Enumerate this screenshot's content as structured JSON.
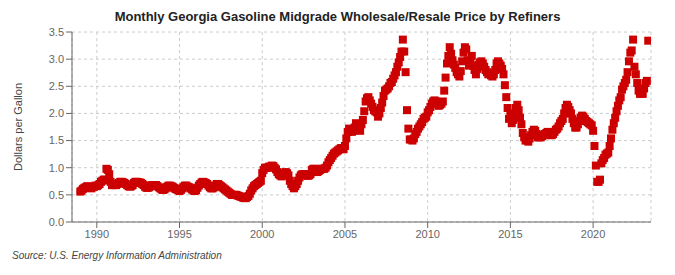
{
  "chart_data": {
    "type": "scatter",
    "title": "Monthly Georgia Gasoline Midgrade Wholesale/Resale Price by Refiners",
    "ylabel": "Dollars per Gallon",
    "annotations": [
      "Source: U.S. Energy Information Administration"
    ],
    "color": "#cc0000",
    "marker": "square",
    "grid": true,
    "xlim": [
      1988.5,
      2023.5
    ],
    "ylim": [
      0.0,
      3.5
    ],
    "xticks": [
      1990,
      1995,
      2000,
      2005,
      2010,
      2015,
      2020
    ],
    "yticks": [
      {
        "value": 0.0,
        "label": "0.0"
      },
      0.5,
      {
        "value": 1.0,
        "label": "1.0"
      },
      1.5,
      {
        "value": 2.0,
        "label": "2.0"
      },
      2.5,
      {
        "value": 3.0,
        "label": "3.0"
      },
      3.5
    ],
    "x": [
      1989.0,
      1989.083,
      1989.167,
      1989.25,
      1989.333,
      1989.417,
      1989.5,
      1989.583,
      1989.667,
      1989.75,
      1989.833,
      1989.917,
      1990.0,
      1990.083,
      1990.167,
      1990.25,
      1990.333,
      1990.417,
      1990.5,
      1990.583,
      1990.667,
      1990.75,
      1990.833,
      1990.917,
      1991.0,
      1991.083,
      1991.167,
      1991.25,
      1991.333,
      1991.417,
      1991.5,
      1991.583,
      1991.667,
      1991.75,
      1991.833,
      1991.917,
      1992.0,
      1992.083,
      1992.167,
      1992.25,
      1992.333,
      1992.417,
      1992.5,
      1992.583,
      1992.667,
      1992.75,
      1992.833,
      1992.917,
      1993.0,
      1993.083,
      1993.167,
      1993.25,
      1993.333,
      1993.417,
      1993.5,
      1993.583,
      1993.667,
      1993.75,
      1993.833,
      1993.917,
      1994.0,
      1994.083,
      1994.167,
      1994.25,
      1994.333,
      1994.417,
      1994.5,
      1994.583,
      1994.667,
      1994.75,
      1994.833,
      1994.917,
      1995.0,
      1995.083,
      1995.167,
      1995.25,
      1995.333,
      1995.417,
      1995.5,
      1995.583,
      1995.667,
      1995.75,
      1995.833,
      1995.917,
      1996.0,
      1996.083,
      1996.167,
      1996.25,
      1996.333,
      1996.417,
      1996.5,
      1996.583,
      1996.667,
      1996.75,
      1996.833,
      1996.917,
      1997.0,
      1997.083,
      1997.167,
      1997.25,
      1997.333,
      1997.417,
      1997.5,
      1997.583,
      1997.667,
      1997.75,
      1997.833,
      1997.917,
      1998.0,
      1998.083,
      1998.167,
      1998.25,
      1998.333,
      1998.417,
      1998.5,
      1998.583,
      1998.667,
      1998.75,
      1998.833,
      1998.917,
      1999.0,
      1999.083,
      1999.167,
      1999.25,
      1999.333,
      1999.417,
      1999.5,
      1999.583,
      1999.667,
      1999.75,
      1999.833,
      1999.917,
      2000.0,
      2000.083,
      2000.167,
      2000.25,
      2000.333,
      2000.417,
      2000.5,
      2000.583,
      2000.667,
      2000.75,
      2000.833,
      2000.917,
      2001.0,
      2001.083,
      2001.167,
      2001.25,
      2001.333,
      2001.417,
      2001.5,
      2001.583,
      2001.667,
      2001.75,
      2001.833,
      2001.917,
      2002.0,
      2002.083,
      2002.167,
      2002.25,
      2002.333,
      2002.417,
      2002.5,
      2002.583,
      2002.667,
      2002.75,
      2002.833,
      2002.917,
      2003.0,
      2003.083,
      2003.167,
      2003.25,
      2003.333,
      2003.417,
      2003.5,
      2003.583,
      2003.667,
      2003.75,
      2003.833,
      2003.917,
      2004.0,
      2004.083,
      2004.167,
      2004.25,
      2004.333,
      2004.417,
      2004.5,
      2004.583,
      2004.667,
      2004.75,
      2004.833,
      2004.917,
      2005.0,
      2005.083,
      2005.167,
      2005.25,
      2005.333,
      2005.417,
      2005.5,
      2005.583,
      2005.667,
      2005.75,
      2005.833,
      2005.917,
      2006.0,
      2006.083,
      2006.167,
      2006.25,
      2006.333,
      2006.417,
      2006.5,
      2006.583,
      2006.667,
      2006.75,
      2006.833,
      2006.917,
      2007.0,
      2007.083,
      2007.167,
      2007.25,
      2007.333,
      2007.417,
      2007.5,
      2007.583,
      2007.667,
      2007.75,
      2007.833,
      2007.917,
      2008.0,
      2008.083,
      2008.167,
      2008.25,
      2008.333,
      2008.417,
      2008.5,
      2008.583,
      2008.667,
      2008.75,
      2008.833,
      2008.917,
      2009.0,
      2009.083,
      2009.167,
      2009.25,
      2009.333,
      2009.417,
      2009.5,
      2009.583,
      2009.667,
      2009.75,
      2009.833,
      2009.917,
      2010.0,
      2010.083,
      2010.167,
      2010.25,
      2010.333,
      2010.417,
      2010.5,
      2010.583,
      2010.667,
      2010.75,
      2010.833,
      2010.917,
      2011.0,
      2011.083,
      2011.167,
      2011.25,
      2011.333,
      2011.417,
      2011.5,
      2011.583,
      2011.667,
      2011.75,
      2011.833,
      2011.917,
      2012.0,
      2012.083,
      2012.167,
      2012.25,
      2012.333,
      2012.417,
      2012.5,
      2012.583,
      2012.667,
      2012.75,
      2012.833,
      2012.917,
      2013.0,
      2013.083,
      2013.167,
      2013.25,
      2013.333,
      2013.417,
      2013.5,
      2013.583,
      2013.667,
      2013.75,
      2013.833,
      2013.917,
      2014.0,
      2014.083,
      2014.167,
      2014.25,
      2014.333,
      2014.417,
      2014.5,
      2014.583,
      2014.667,
      2014.75,
      2014.833,
      2014.917,
      2015.0,
      2015.083,
      2015.167,
      2015.25,
      2015.333,
      2015.417,
      2015.5,
      2015.583,
      2015.667,
      2015.75,
      2015.833,
      2015.917,
      2016.0,
      2016.083,
      2016.167,
      2016.25,
      2016.333,
      2016.417,
      2016.5,
      2016.583,
      2016.667,
      2016.75,
      2016.833,
      2016.917,
      2017.0,
      2017.083,
      2017.167,
      2017.25,
      2017.333,
      2017.417,
      2017.5,
      2017.583,
      2017.667,
      2017.75,
      2017.833,
      2017.917,
      2018.0,
      2018.083,
      2018.167,
      2018.25,
      2018.333,
      2018.417,
      2018.5,
      2018.583,
      2018.667,
      2018.75,
      2018.833,
      2018.917,
      2019.0,
      2019.083,
      2019.167,
      2019.25,
      2019.333,
      2019.417,
      2019.5,
      2019.583,
      2019.667,
      2019.75,
      2019.833,
      2019.917,
      2020.0,
      2020.083,
      2020.167,
      2020.25,
      2020.333,
      2020.417,
      2020.5,
      2020.583,
      2020.667,
      2020.75,
      2020.833,
      2020.917,
      2021.0,
      2021.083,
      2021.167,
      2021.25,
      2021.333,
      2021.417,
      2021.5,
      2021.583,
      2021.667,
      2021.75,
      2021.833,
      2021.917,
      2022.0,
      2022.083,
      2022.167,
      2022.25,
      2022.333,
      2022.417,
      2022.5,
      2022.583,
      2022.667,
      2022.75,
      2022.833,
      2022.917,
      2023.0,
      2023.083,
      2023.167,
      2023.25,
      2023.333
    ],
    "values": [
      0.56,
      0.58,
      0.61,
      0.63,
      0.64,
      0.66,
      0.65,
      0.63,
      0.62,
      0.64,
      0.65,
      0.67,
      0.66,
      0.68,
      0.7,
      0.74,
      0.76,
      0.78,
      0.78,
      0.98,
      0.96,
      0.88,
      0.74,
      0.68,
      0.68,
      0.68,
      0.68,
      0.7,
      0.72,
      0.74,
      0.74,
      0.73,
      0.72,
      0.7,
      0.68,
      0.66,
      0.65,
      0.66,
      0.68,
      0.72,
      0.74,
      0.74,
      0.73,
      0.73,
      0.72,
      0.7,
      0.68,
      0.65,
      0.63,
      0.63,
      0.64,
      0.66,
      0.68,
      0.68,
      0.68,
      0.68,
      0.66,
      0.64,
      0.62,
      0.6,
      0.59,
      0.6,
      0.62,
      0.65,
      0.67,
      0.67,
      0.66,
      0.65,
      0.63,
      0.61,
      0.6,
      0.59,
      0.57,
      0.59,
      0.62,
      0.65,
      0.67,
      0.67,
      0.65,
      0.64,
      0.62,
      0.6,
      0.58,
      0.57,
      0.59,
      0.63,
      0.67,
      0.7,
      0.73,
      0.74,
      0.73,
      0.72,
      0.7,
      0.67,
      0.64,
      0.62,
      0.62,
      0.64,
      0.67,
      0.7,
      0.7,
      0.68,
      0.66,
      0.64,
      0.62,
      0.6,
      0.58,
      0.56,
      0.54,
      0.52,
      0.5,
      0.5,
      0.5,
      0.5,
      0.49,
      0.48,
      0.47,
      0.46,
      0.45,
      0.44,
      0.44,
      0.46,
      0.48,
      0.52,
      0.58,
      0.62,
      0.66,
      0.68,
      0.7,
      0.72,
      0.74,
      0.76,
      0.9,
      0.96,
      1.0,
      1.0,
      1.0,
      1.02,
      1.02,
      1.04,
      1.03,
      1.0,
      0.97,
      0.92,
      0.88,
      0.86,
      0.84,
      0.86,
      0.9,
      0.92,
      0.9,
      0.86,
      0.76,
      0.7,
      0.66,
      0.62,
      0.66,
      0.7,
      0.76,
      0.82,
      0.86,
      0.88,
      0.88,
      0.88,
      0.86,
      0.85,
      0.86,
      0.88,
      0.96,
      0.98,
      0.98,
      0.94,
      0.92,
      0.94,
      0.96,
      0.98,
      0.98,
      0.98,
      1.0,
      1.04,
      1.1,
      1.14,
      1.18,
      1.22,
      1.26,
      1.28,
      1.3,
      1.32,
      1.34,
      1.36,
      1.36,
      1.34,
      1.4,
      1.54,
      1.66,
      1.72,
      1.7,
      1.66,
      1.68,
      1.74,
      1.82,
      1.76,
      1.72,
      1.68,
      1.8,
      1.88,
      2.04,
      2.22,
      2.28,
      2.3,
      2.24,
      2.18,
      2.12,
      2.06,
      2.04,
      2.02,
      1.94,
      2.0,
      2.1,
      2.2,
      2.32,
      2.42,
      2.44,
      2.46,
      2.5,
      2.56,
      2.58,
      2.64,
      2.7,
      2.76,
      2.86,
      2.94,
      3.04,
      3.14,
      3.36,
      3.14,
      2.76,
      2.06,
      1.72,
      1.52,
      1.52,
      1.5,
      1.54,
      1.62,
      1.66,
      1.72,
      1.76,
      1.8,
      1.84,
      1.9,
      1.92,
      1.94,
      2.02,
      2.06,
      2.12,
      2.18,
      2.22,
      2.24,
      2.22,
      2.18,
      2.14,
      2.16,
      2.18,
      2.22,
      2.42,
      2.66,
      2.92,
      3.06,
      3.22,
      3.1,
      2.98,
      2.9,
      2.84,
      2.76,
      2.72,
      2.68,
      2.78,
      2.96,
      3.12,
      3.22,
      3.18,
      2.98,
      2.88,
      2.94,
      3.06,
      2.88,
      2.8,
      2.72,
      2.82,
      2.9,
      2.94,
      2.96,
      2.92,
      2.86,
      2.8,
      2.76,
      2.72,
      2.74,
      2.7,
      2.68,
      2.72,
      2.8,
      2.92,
      2.96,
      2.92,
      2.88,
      2.82,
      2.72,
      2.52,
      2.3,
      2.1,
      1.9,
      1.96,
      1.82,
      1.88,
      2.0,
      2.1,
      2.16,
      2.06,
      1.92,
      1.8,
      1.64,
      1.56,
      1.5,
      1.52,
      1.48,
      1.54,
      1.6,
      1.66,
      1.7,
      1.68,
      1.62,
      1.56,
      1.56,
      1.56,
      1.58,
      1.6,
      1.62,
      1.64,
      1.66,
      1.64,
      1.6,
      1.6,
      1.62,
      1.66,
      1.7,
      1.72,
      1.76,
      1.82,
      1.86,
      1.9,
      2.0,
      2.1,
      2.16,
      2.12,
      2.06,
      2.0,
      1.9,
      1.82,
      1.74,
      1.74,
      1.8,
      1.86,
      1.92,
      1.96,
      1.94,
      1.9,
      1.86,
      1.84,
      1.82,
      1.8,
      1.78,
      1.68,
      1.4,
      1.04,
      0.74,
      0.74,
      0.78,
      1.08,
      1.14,
      1.18,
      1.24,
      1.26,
      1.28,
      1.4,
      1.54,
      1.7,
      1.82,
      1.92,
      2.04,
      2.14,
      2.24,
      2.3,
      2.44,
      2.5,
      2.56,
      2.62,
      2.76,
      2.96,
      3.12,
      3.16,
      3.36,
      2.86,
      2.72,
      2.56,
      2.42,
      2.36,
      2.38,
      2.36,
      2.46,
      2.56,
      2.6,
      3.34
    ]
  }
}
